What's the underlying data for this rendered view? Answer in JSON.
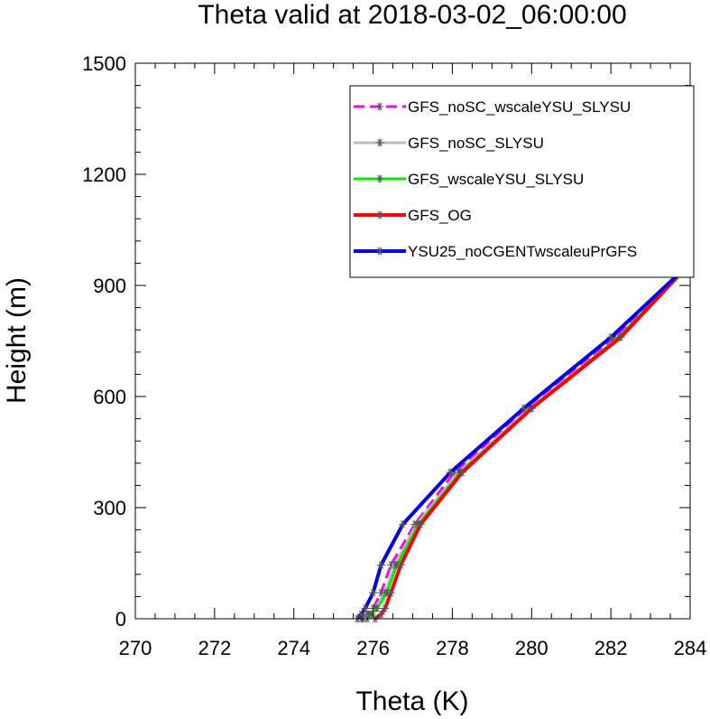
{
  "chart_data": {
    "type": "line",
    "title": "Theta valid at 2018-03-02_06:00:00",
    "xlabel": "Theta (K)",
    "ylabel": "Height (m)",
    "xlim": [
      270,
      284
    ],
    "ylim": [
      0,
      1500
    ],
    "xticks": [
      270,
      272,
      274,
      276,
      278,
      280,
      282,
      284
    ],
    "yticks": [
      0,
      300,
      600,
      900,
      1200,
      1500
    ],
    "grid": false,
    "legend_position": "top-right",
    "series": [
      {
        "name": "GFS_noSC_wscaleYSU_SLYSU",
        "color": "#ff00ff",
        "dash": "dashed",
        "width": 3,
        "x": [
          275.7,
          275.85,
          276.0,
          276.2,
          276.45,
          277.05,
          278.05,
          279.85,
          282.1,
          284.0
        ],
        "y": [
          0,
          12,
          28,
          70,
          145,
          255,
          395,
          568,
          760,
          960
        ]
      },
      {
        "name": "GFS_noSC_SLYSU",
        "color": "#bbbbbb",
        "dash": "solid",
        "width": 3,
        "x": [
          275.75,
          275.9,
          276.05,
          276.3,
          276.55,
          277.1,
          278.15,
          279.95,
          282.2,
          284.0
        ],
        "y": [
          0,
          12,
          28,
          70,
          145,
          255,
          395,
          568,
          760,
          960
        ]
      },
      {
        "name": "GFS_wscaleYSU_SLYSU",
        "color": "#00ee00",
        "dash": "solid",
        "width": 3,
        "x": [
          275.85,
          275.95,
          276.1,
          276.35,
          276.6,
          277.15,
          278.2,
          280.0,
          282.2,
          284.0
        ],
        "y": [
          0,
          12,
          28,
          70,
          145,
          255,
          395,
          568,
          760,
          960
        ]
      },
      {
        "name": "GFS_OG",
        "color": "#ff0000",
        "dash": "solid",
        "width": 4,
        "x": [
          276.05,
          276.2,
          276.3,
          276.45,
          276.7,
          277.2,
          278.25,
          280.0,
          282.25,
          284.0
        ],
        "y": [
          0,
          12,
          28,
          70,
          145,
          255,
          395,
          568,
          760,
          960
        ]
      },
      {
        "name": "YSU25_noCGENTwscaleuPrGFS",
        "color": "#0000ee",
        "dash": "solid",
        "width": 4,
        "x": [
          275.6,
          275.7,
          275.8,
          276.0,
          276.2,
          276.75,
          277.95,
          279.8,
          282.0,
          284.0
        ],
        "y": [
          0,
          12,
          28,
          70,
          145,
          255,
          395,
          568,
          760,
          960
        ]
      }
    ]
  }
}
